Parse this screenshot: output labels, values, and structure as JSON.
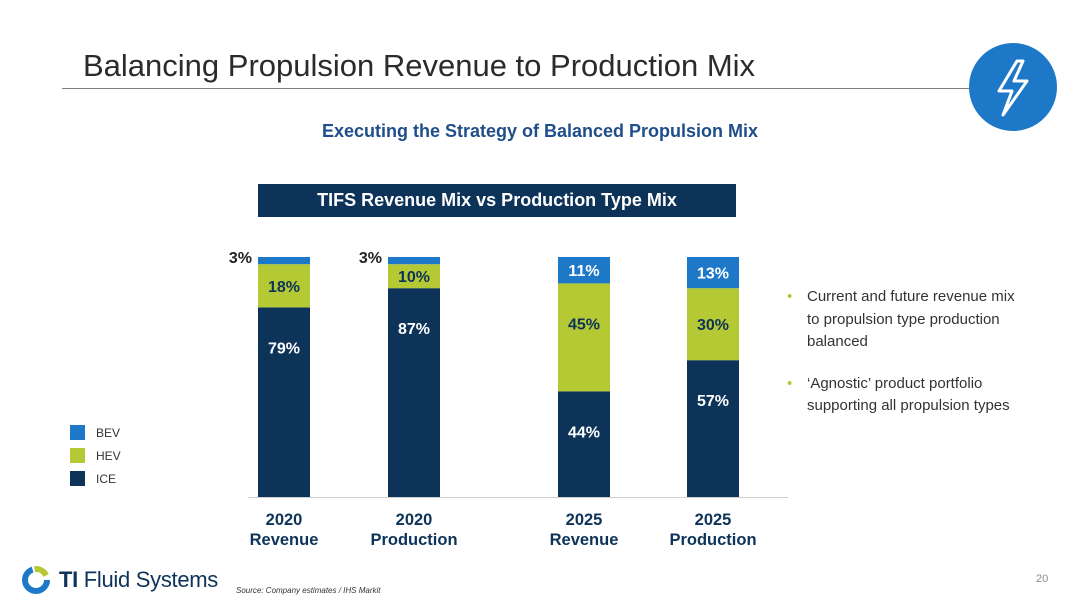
{
  "slide": {
    "title": "Balancing Propulsion Revenue to Production Mix",
    "subtitle": "Executing the Strategy of Balanced Propulsion Mix",
    "badge_icon": "lightning-bolt-icon",
    "page_number": "20",
    "source": "Source: Company estimates / IHS Markit"
  },
  "logo": {
    "brand_bold": "TI",
    "brand_rest": " Fluid Systems",
    "icon": "ti-logo-icon"
  },
  "bullets": [
    "Current and future revenue mix to propulsion type production balanced",
    "‘Agnostic’ product portfolio supporting all propulsion types"
  ],
  "colors": {
    "BEV": "#1d78c8",
    "HEV": "#b5c935",
    "ICE": "#0d3358",
    "banner": "#0d3358",
    "subtitle": "#1f4e8a"
  },
  "chart_data": {
    "type": "bar",
    "stacked": true,
    "title": "TIFS Revenue Mix vs Production Type Mix",
    "categories": [
      [
        "2020",
        "Revenue"
      ],
      [
        "2020",
        "Production"
      ],
      [
        "2025",
        "Revenue"
      ],
      [
        "2025",
        "Production"
      ]
    ],
    "series": [
      {
        "name": "ICE",
        "values": [
          79,
          87,
          44,
          57
        ]
      },
      {
        "name": "HEV",
        "values": [
          18,
          10,
          45,
          30
        ]
      },
      {
        "name": "BEV",
        "values": [
          3,
          3,
          11,
          13
        ]
      }
    ],
    "value_unit": "%",
    "ylim": [
      0,
      100
    ],
    "grid": false,
    "legend_position": "left",
    "legend_order": [
      "BEV",
      "HEV",
      "ICE"
    ]
  }
}
